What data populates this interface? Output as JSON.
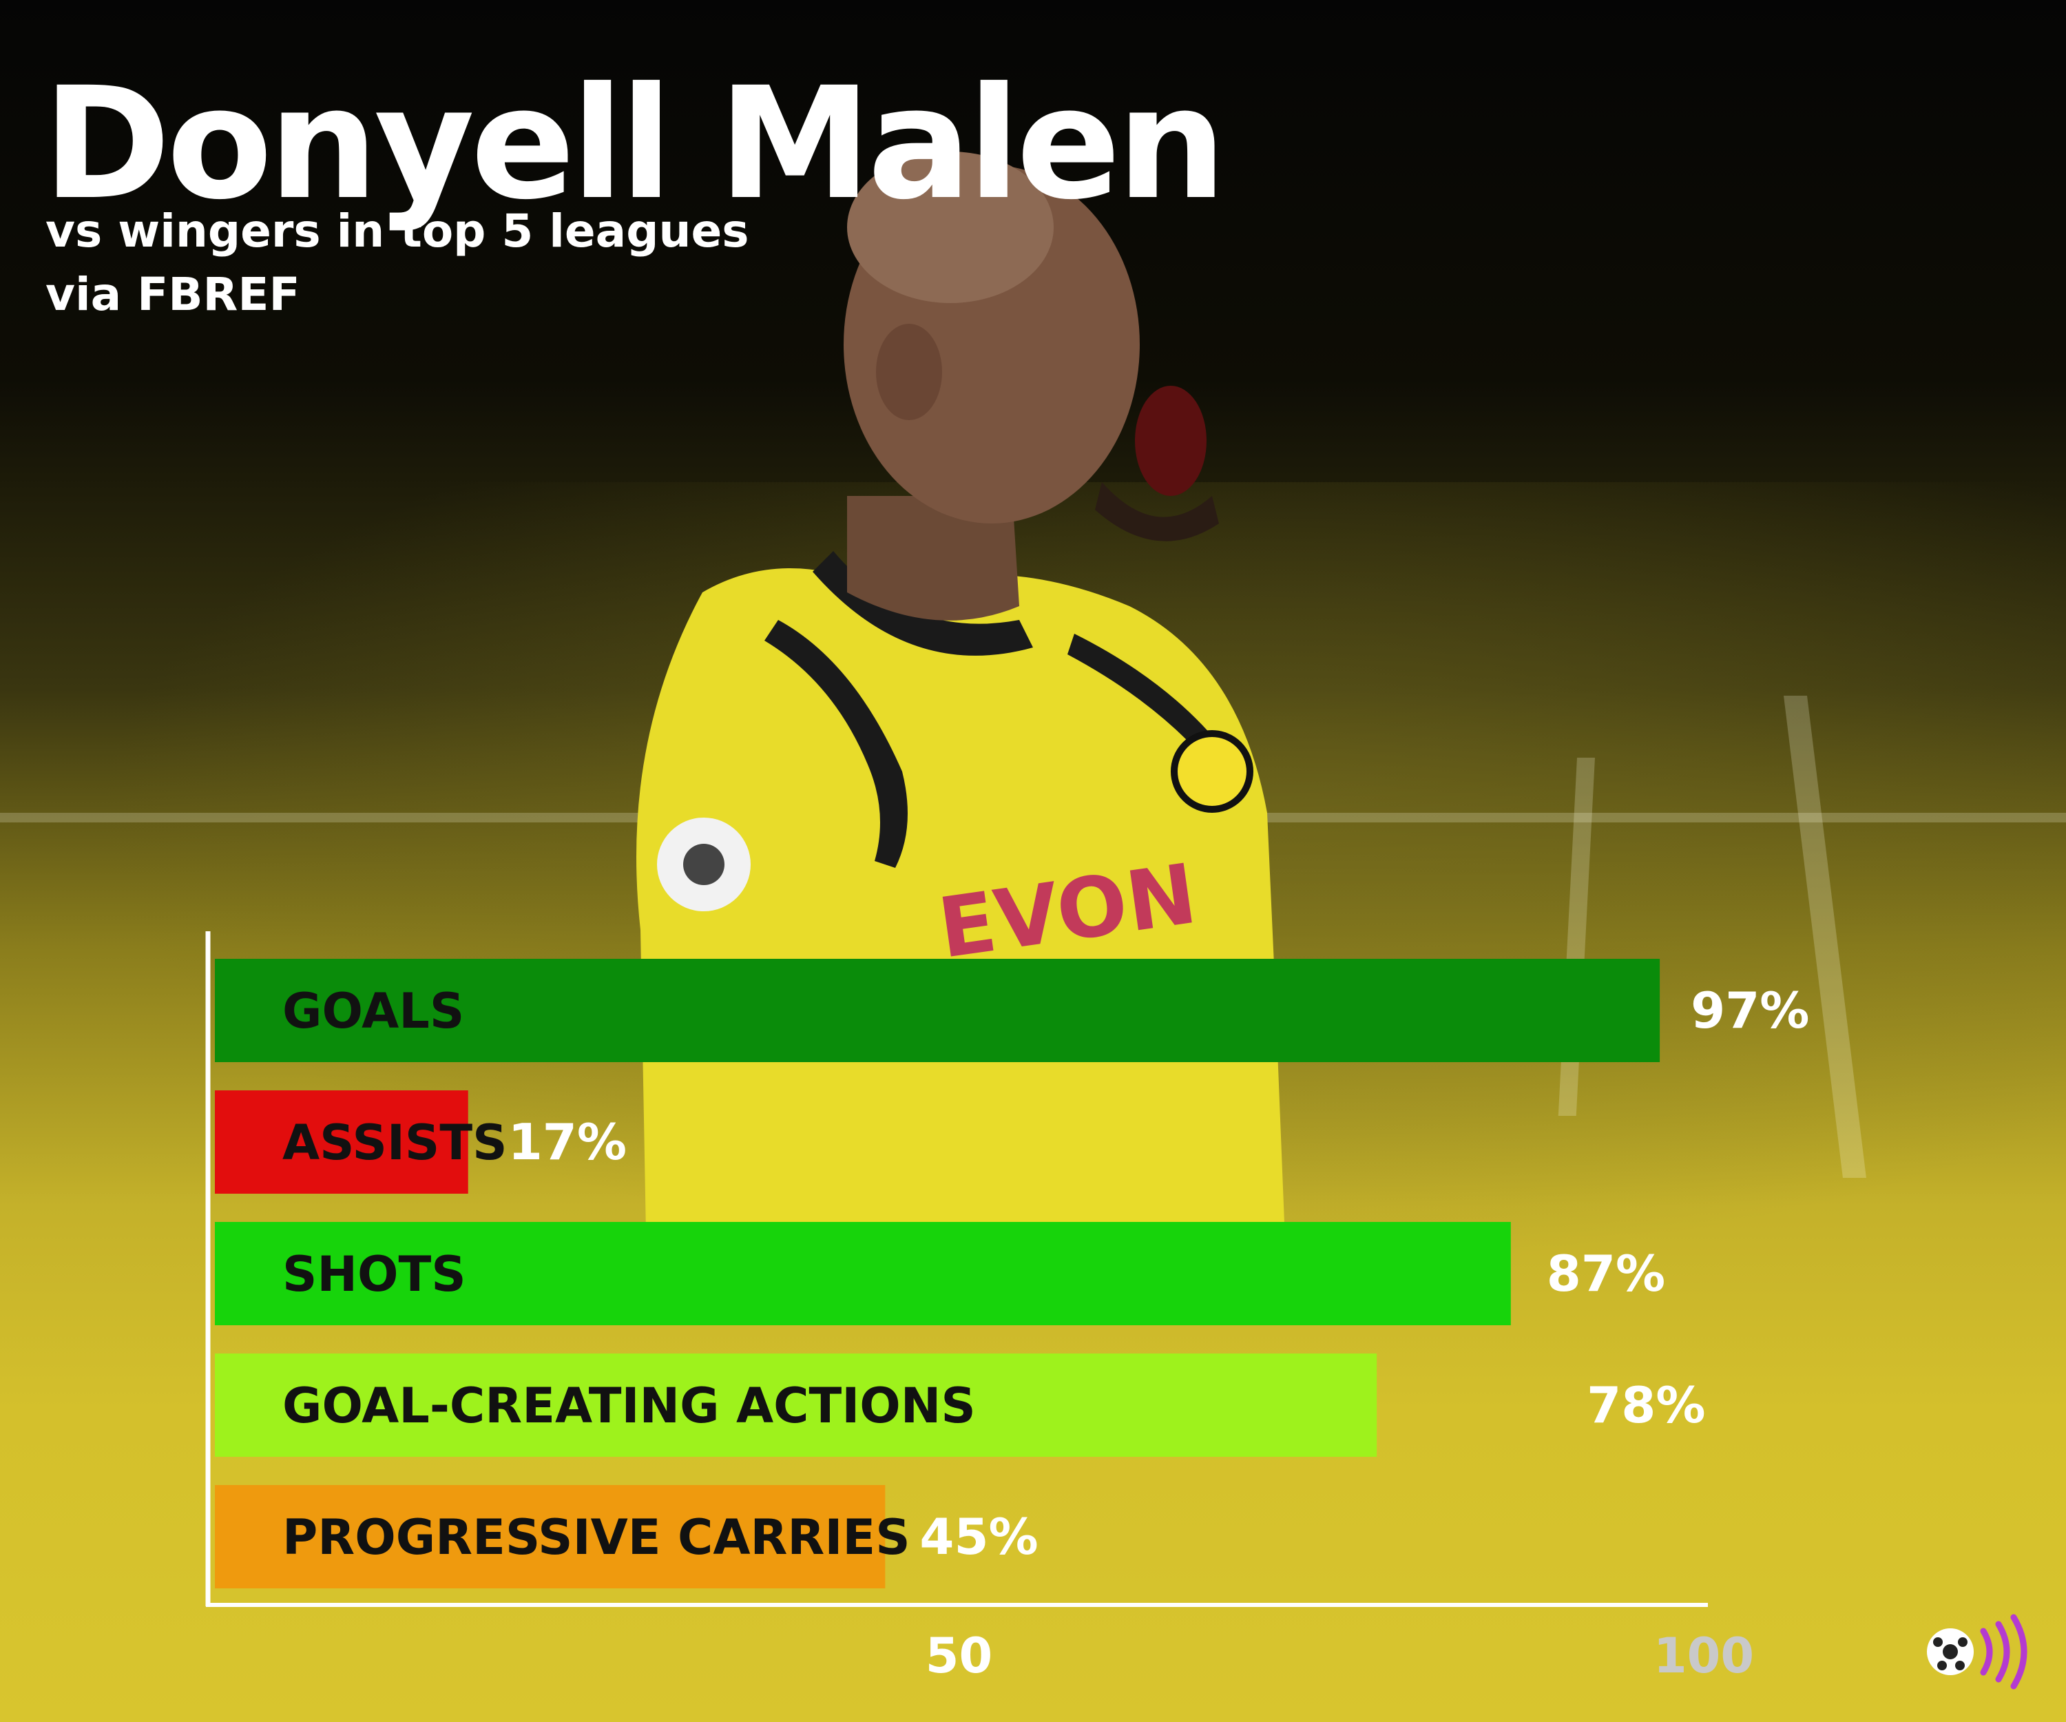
{
  "title": "Donyell Malen",
  "subtitle_lines": [
    "vs wingers in top 5 leagues",
    "via FBREF"
  ],
  "logo_icon": "football-signal-logo-icon",
  "colors": {
    "goals": "#0a8c0a",
    "assists": "#e20d0d",
    "shots": "#17d40b",
    "goal_creating_actions": "#9ef21c",
    "progressive_carries": "#ef9a0e",
    "label_dark": "#111111",
    "value_light": "#ffffff",
    "tick_50": "#ffffff",
    "tick_100": "#c9c9c9"
  },
  "chart_data": {
    "type": "bar",
    "orientation": "horizontal",
    "categories": [
      "GOALS",
      "ASSISTS",
      "SHOTS",
      "GOAL-CREATING ACTIONS",
      "PROGRESSIVE CARRIES"
    ],
    "values": [
      97,
      17,
      87,
      78,
      45
    ],
    "value_labels": [
      "97%",
      "17%",
      "87%",
      "78%",
      "45%"
    ],
    "xlim": [
      0,
      100
    ],
    "xticks": [
      50,
      100
    ],
    "xtick_labels": [
      "50",
      "100"
    ],
    "grid": false,
    "legend": "none"
  }
}
